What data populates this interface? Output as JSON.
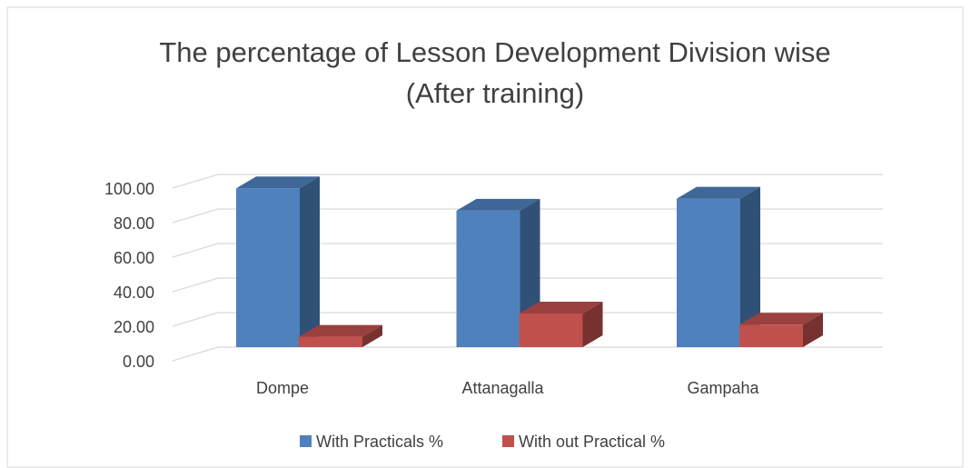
{
  "chart_data": {
    "type": "bar3d",
    "title": "The percentage of Lesson Development Division wise",
    "subtitle": "(After training)",
    "categories": [
      "Dompe",
      "Attanagalla",
      "Gampaha"
    ],
    "series": [
      {
        "name": "With Practicals %",
        "color": "#4f81bd",
        "values": [
          92,
          79,
          86
        ]
      },
      {
        "name": "With out Practical %",
        "color": "#c0504d",
        "values": [
          6,
          19.5,
          13
        ]
      }
    ],
    "ylim": [
      0,
      100
    ],
    "yticks": [
      {
        "value": 0,
        "label": "0.00"
      },
      {
        "value": 20,
        "label": "20.00"
      },
      {
        "value": 40,
        "label": "40.00"
      },
      {
        "value": 60,
        "label": "60.00"
      },
      {
        "value": 80,
        "label": "80.00"
      },
      {
        "value": 100,
        "label": "100.00"
      }
    ],
    "grid": true,
    "legend": "bottom"
  }
}
